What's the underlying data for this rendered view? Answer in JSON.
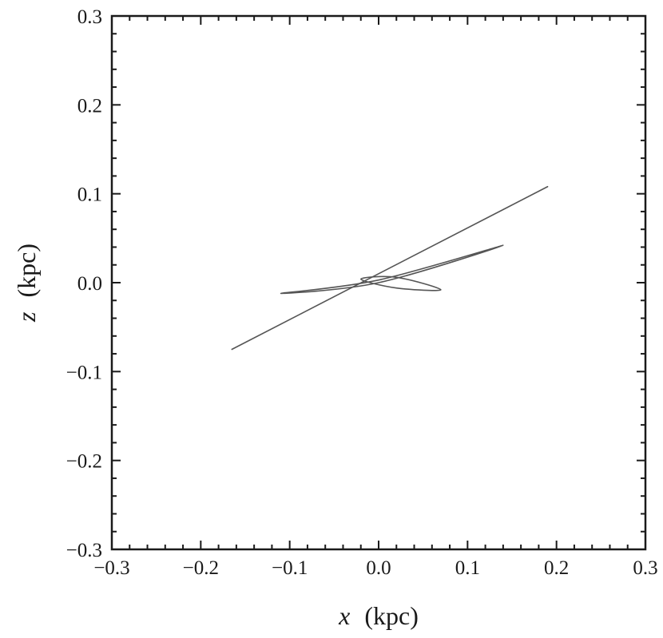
{
  "chart_data": {
    "type": "line",
    "title": "",
    "xlabel": {
      "var": "x",
      "unit": "(kpc)"
    },
    "ylabel": {
      "var": "z",
      "unit": "(kpc)"
    },
    "xlim": [
      -0.3,
      0.3
    ],
    "ylim": [
      -0.3,
      0.3
    ],
    "x_ticks": [
      -0.3,
      -0.2,
      -0.1,
      0.0,
      0.1,
      0.2,
      0.3
    ],
    "y_ticks": [
      -0.3,
      -0.2,
      -0.1,
      0.0,
      0.1,
      0.2,
      0.3
    ],
    "x_tick_labels": [
      "−0.3",
      "−0.2",
      "−0.1",
      "0.0",
      "0.1",
      "0.2",
      "0.3"
    ],
    "y_tick_labels": [
      "−0.3",
      "−0.2",
      "−0.1",
      "0.0",
      "0.1",
      "0.2",
      "0.3"
    ],
    "minor_ticks_per_major": 5,
    "grid": false,
    "legend": "none",
    "line_color": "#555555",
    "series": [
      {
        "x": [
          -0.165,
          0.19,
          -0.165,
          0.19,
          -0.165
        ],
        "y": [
          -0.075,
          0.108,
          -0.075,
          0.108,
          -0.075
        ]
      },
      {
        "x": [
          -0.11,
          0.0,
          0.14,
          0.0,
          -0.11
        ],
        "y": [
          -0.012,
          0.003,
          0.042,
          0.0,
          -0.012
        ]
      },
      {
        "x": [
          -0.02,
          0.02,
          0.07,
          0.02,
          -0.02
        ],
        "y": [
          0.004,
          0.006,
          -0.008,
          -0.006,
          0.004
        ]
      }
    ]
  }
}
